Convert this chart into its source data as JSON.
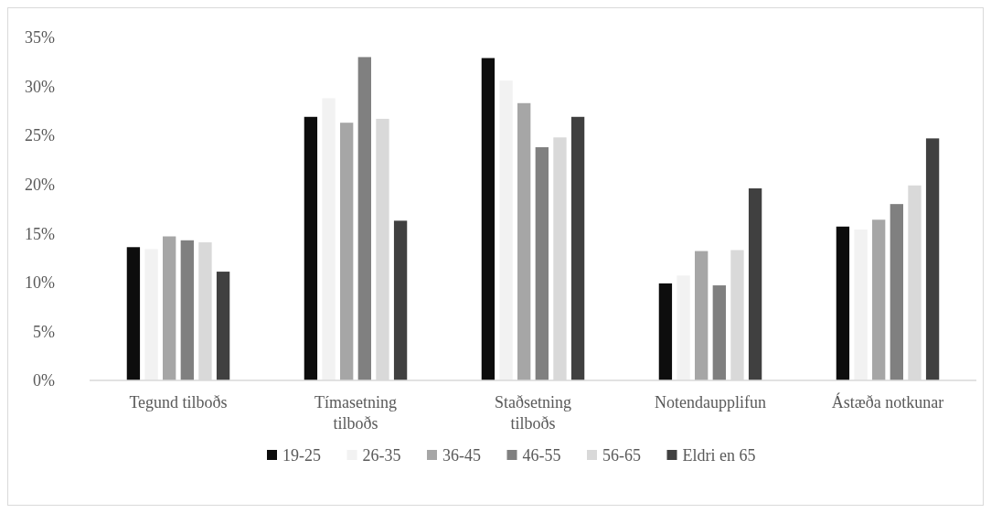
{
  "chart_data": {
    "type": "bar",
    "categories": [
      "Tegund tilboðs",
      "Tímasetning tilboðs",
      "Staðsetning tilboðs",
      "Notendaupplifun",
      "Ástæða notkunar"
    ],
    "series": [
      {
        "name": "19-25",
        "color": "#0d0d0d",
        "values": [
          13.6,
          26.9,
          32.9,
          9.9,
          15.7
        ]
      },
      {
        "name": "26-35",
        "color": "#f2f2f2",
        "values": [
          13.4,
          28.8,
          30.6,
          10.7,
          15.4
        ]
      },
      {
        "name": "36-45",
        "color": "#a6a6a6",
        "values": [
          14.7,
          26.3,
          28.3,
          13.2,
          16.4
        ]
      },
      {
        "name": "46-55",
        "color": "#808080",
        "values": [
          14.3,
          33.0,
          23.8,
          9.7,
          18.0
        ]
      },
      {
        "name": "56-65",
        "color": "#d9d9d9",
        "values": [
          14.1,
          26.7,
          24.8,
          13.3,
          19.9
        ]
      },
      {
        "name": "Eldri en 65",
        "color": "#404040",
        "values": [
          11.1,
          16.3,
          26.9,
          19.6,
          24.7
        ]
      }
    ],
    "ylim": [
      0,
      35
    ],
    "yticks": [
      {
        "value": 0,
        "label": "0%"
      },
      {
        "value": 5,
        "label": "5%"
      },
      {
        "value": 10,
        "label": "10%"
      },
      {
        "value": 15,
        "label": "15%"
      },
      {
        "value": 20,
        "label": "20%"
      },
      {
        "value": 25,
        "label": "25%"
      },
      {
        "value": 30,
        "label": "30%"
      },
      {
        "value": 35,
        "label": "35%"
      }
    ],
    "grid": false,
    "legend": "bottom"
  }
}
